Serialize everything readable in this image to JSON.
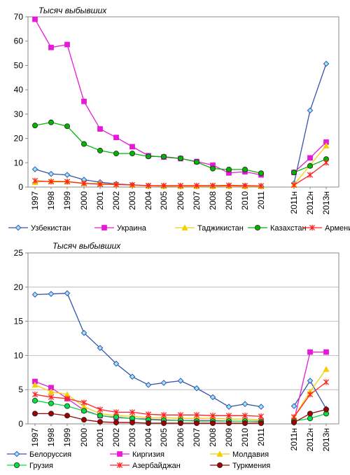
{
  "chart_data": [
    {
      "type": "line",
      "ylabel": "Тысяч выбывших",
      "ylim": [
        0,
        70
      ],
      "yticks": [
        0,
        10,
        20,
        30,
        40,
        50,
        60,
        70
      ],
      "categories": [
        "1997",
        "1998",
        "1999",
        "2000",
        "2001",
        "2002",
        "2003",
        "2004",
        "2005",
        "2006",
        "2007",
        "2008",
        "2009",
        "2010",
        "2011",
        "2011н",
        "2012н",
        "2013н"
      ],
      "grid": false,
      "legend": "bottom",
      "series": [
        {
          "name": "Узбекистан",
          "color": "#3355aa",
          "marker": "diamond",
          "values": [
            7.3,
            5.4,
            5.0,
            3.0,
            2.0,
            1.3,
            0.9,
            0.5,
            0.4,
            0.3,
            0.3,
            0.4,
            0.5,
            0.4,
            0.3,
            1.5,
            31.5,
            50.7
          ]
        },
        {
          "name": "Украина",
          "color": "#e619d8",
          "marker": "square",
          "values": [
            69.0,
            57.4,
            58.6,
            35.2,
            23.9,
            20.4,
            16.6,
            12.9,
            12.3,
            11.7,
            10.5,
            9.0,
            5.8,
            6.3,
            5.0,
            6.0,
            12.0,
            18.5
          ]
        },
        {
          "name": "Таджикистан",
          "color": "#f0d000",
          "marker": "triangle",
          "values": [
            2.0,
            2.5,
            2.3,
            1.6,
            1.4,
            1.1,
            0.8,
            0.5,
            0.4,
            0.3,
            0.3,
            0.3,
            0.4,
            0.3,
            0.3,
            1.0,
            9.0,
            17.0
          ]
        },
        {
          "name": "Казахстан",
          "color": "#00b400",
          "marker": "circle",
          "values": [
            25.3,
            26.6,
            25.0,
            17.7,
            15.0,
            13.8,
            13.8,
            12.6,
            12.5,
            11.8,
            10.3,
            7.6,
            7.2,
            7.2,
            5.7,
            6.0,
            8.7,
            11.5
          ]
        },
        {
          "name": "Армения",
          "color": "#ff2020",
          "marker": "star",
          "values": [
            2.6,
            2.2,
            2.2,
            1.5,
            1.2,
            1.0,
            0.9,
            0.6,
            0.6,
            0.6,
            0.6,
            0.6,
            0.7,
            0.6,
            0.5,
            0.8,
            5.0,
            10.0
          ]
        }
      ]
    },
    {
      "type": "line",
      "ylabel": "Тысяч выбывших",
      "ylim": [
        0,
        25
      ],
      "yticks": [
        0,
        5,
        10,
        15,
        20,
        25
      ],
      "categories": [
        "1997",
        "1998",
        "1999",
        "2000",
        "2001",
        "2002",
        "2003",
        "2004",
        "2005",
        "2006",
        "2007",
        "2008",
        "2009",
        "2010",
        "2011",
        "2011н",
        "2012н",
        "2013н"
      ],
      "grid": true,
      "legend": "bottom",
      "series": [
        {
          "name": "Белоруссия",
          "color": "#3355aa",
          "marker": "diamond",
          "values": [
            18.9,
            19.0,
            19.1,
            13.3,
            11.1,
            8.8,
            6.9,
            5.7,
            6.0,
            6.3,
            5.2,
            3.9,
            2.5,
            2.9,
            2.5,
            2.6,
            6.3,
            2.2
          ]
        },
        {
          "name": "Киргизия",
          "color": "#e619d8",
          "marker": "square",
          "values": [
            6.2,
            5.3,
            3.7,
            2.0,
            1.2,
            0.9,
            0.8,
            0.7,
            0.6,
            0.5,
            0.5,
            0.5,
            0.4,
            0.4,
            0.4,
            0.5,
            10.5,
            10.5
          ]
        },
        {
          "name": "Молдавия",
          "color": "#f0d000",
          "marker": "triangle",
          "values": [
            5.7,
            4.7,
            4.3,
            2.5,
            1.5,
            1.2,
            1.1,
            0.9,
            0.9,
            0.8,
            0.8,
            0.8,
            0.7,
            0.7,
            0.6,
            1.0,
            4.7,
            8.0
          ]
        },
        {
          "name": "Грузия",
          "color": "#00e040",
          "marker": "circle",
          "values": [
            3.4,
            3.0,
            2.6,
            1.9,
            1.2,
            1.0,
            0.8,
            0.6,
            0.5,
            0.5,
            0.4,
            0.4,
            0.4,
            0.4,
            0.3,
            0.4,
            0.8,
            1.5
          ]
        },
        {
          "name": "Азербайджан",
          "color": "#ff2020",
          "marker": "star",
          "values": [
            4.3,
            3.9,
            3.7,
            3.1,
            2.1,
            1.7,
            1.7,
            1.4,
            1.3,
            1.3,
            1.3,
            1.2,
            1.2,
            1.2,
            1.1,
            1.0,
            4.3,
            6.1
          ]
        },
        {
          "name": "Туркмения",
          "color": "#a00000",
          "marker": "circle",
          "values": [
            1.5,
            1.5,
            1.2,
            0.6,
            0.3,
            0.2,
            0.2,
            0.1,
            0.1,
            0.1,
            0.1,
            0.1,
            0.1,
            0.1,
            0.1,
            0.2,
            1.5,
            2.1
          ]
        }
      ]
    }
  ]
}
